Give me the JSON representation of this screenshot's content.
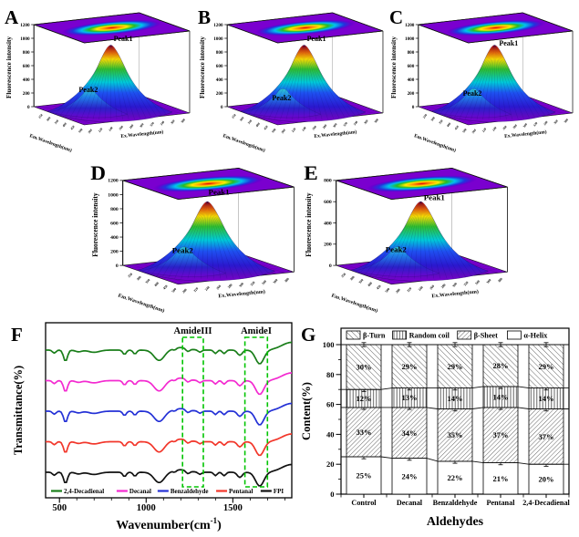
{
  "figure": {
    "axes3d": {
      "em_ticks": [
        "250",
        "300",
        "350",
        "400",
        "450",
        "500"
      ],
      "ex_ticks": [
        "200",
        "220",
        "240",
        "260",
        "280",
        "300",
        "320",
        "340",
        "360",
        "380"
      ]
    },
    "colors": {
      "surface_base_purple": "#7a00cf",
      "annotation_green": "#00c400",
      "jet_scale": [
        "#d10000",
        "#ff6f00",
        "#ffe400",
        "#2fc02f",
        "#00c9d8",
        "#1e50f0",
        "#2a18cf",
        "#7a00cf"
      ]
    }
  },
  "chart_data": [
    {
      "panel": "A",
      "type": "surface_3d",
      "zlabel": "Fluorescence intensity",
      "zmax": 1200,
      "zticks": [
        "1200",
        "1000",
        "800",
        "600",
        "400",
        "200",
        "0"
      ],
      "annotations": [
        "Peak1",
        "Peak2"
      ],
      "xlabel": "Em.Wavelength(nm)",
      "ylabel": "Ex.Wavelength(nm)"
    },
    {
      "panel": "B",
      "type": "surface_3d",
      "zlabel": "Fluorescence intensity",
      "zmax": 1200,
      "zticks": [
        "1200",
        "1000",
        "800",
        "600",
        "400",
        "200",
        "0"
      ],
      "annotations": [
        "Peak1",
        "Peak2"
      ],
      "xlabel": "Em.Wavelength(nm)",
      "ylabel": "Ex.Wavelength(nm)"
    },
    {
      "panel": "C",
      "type": "surface_3d",
      "zlabel": "Fluorescence intensity",
      "zmax": 1200,
      "zticks": [
        "1200",
        "1000",
        "800",
        "600",
        "400",
        "200",
        "0"
      ],
      "annotations": [
        "Peak1",
        "Peak2"
      ],
      "xlabel": "Em.Wavelength(nm)",
      "ylabel": "Ex.Wavelength(nm)"
    },
    {
      "panel": "D",
      "type": "surface_3d",
      "zlabel": "Fluorescence intensity",
      "zmax": 1200,
      "zticks": [
        "1200",
        "1000",
        "800",
        "600",
        "400",
        "200",
        "0"
      ],
      "annotations": [
        "Peak1",
        "Peak2"
      ],
      "xlabel": "Em.Wavelength(nm)",
      "ylabel": "Ex.Wavelength(nm)"
    },
    {
      "panel": "E",
      "type": "surface_3d",
      "zlabel": "Fluorescence intensity",
      "zmax": 800,
      "zticks": [
        "800",
        "600",
        "400",
        "200",
        "0"
      ],
      "annotations": [
        "Peak1",
        "Peak2"
      ],
      "xlabel": "Em.Wavelength(nm)",
      "ylabel": "Ex.Wavelength(nm)"
    },
    {
      "panel": "F",
      "type": "line",
      "ylabel": "Transmittance(%)",
      "xlabel_display": {
        "main": "Wavenumber(cm",
        "sup": "-1",
        "close": ")"
      },
      "xticks": [
        "500",
        "1000",
        "1500"
      ],
      "x_range": [
        420,
        1840
      ],
      "series": [
        {
          "name": "2,4-Decadienal",
          "color": "#1a7e1a"
        },
        {
          "name": "Decanal",
          "color": "#f32ad0"
        },
        {
          "name": "Benzaldehyde",
          "color": "#2431d6"
        },
        {
          "name": "Pentanal",
          "color": "#f2362a"
        },
        {
          "name": "FPI",
          "color": "#111111"
        }
      ],
      "annotations": [
        {
          "label": "AmideIII",
          "x_range": [
            1210,
            1330
          ]
        },
        {
          "label": "AmideI",
          "x_range": [
            1570,
            1700
          ]
        }
      ],
      "absorption_features_cm1": [
        {
          "c": 470,
          "w": 14,
          "d": 3.5
        },
        {
          "c": 535,
          "w": 16,
          "d": 13
        },
        {
          "c": 610,
          "w": 25,
          "d": 2
        },
        {
          "c": 700,
          "w": 45,
          "d": 2.5
        },
        {
          "c": 875,
          "w": 14,
          "d": 5
        },
        {
          "c": 935,
          "w": 14,
          "d": 4.5
        },
        {
          "c": 1075,
          "w": 42,
          "d": 12
        },
        {
          "c": 1165,
          "w": 12,
          "d": 2
        },
        {
          "c": 1240,
          "w": 16,
          "d": 3.5
        },
        {
          "c": 1310,
          "w": 14,
          "d": 2.5
        },
        {
          "c": 1400,
          "w": 13,
          "d": 4
        },
        {
          "c": 1450,
          "w": 14,
          "d": 4
        },
        {
          "c": 1540,
          "w": 20,
          "d": 6
        },
        {
          "c": 1655,
          "w": 34,
          "d": 16
        },
        {
          "c": 1200,
          "w": 60,
          "d": -3
        },
        {
          "c": 1840,
          "w": 80,
          "d": -9
        }
      ]
    },
    {
      "panel": "G",
      "type": "bar",
      "stacked": true,
      "categories": [
        "Control",
        "Decanal",
        "Benzaldehyde",
        "Pentanal",
        "2,4-Decadienal"
      ],
      "series": [
        {
          "name": "α-Helix",
          "pattern": "plain",
          "values": [
            25,
            24,
            22,
            21,
            20
          ]
        },
        {
          "name": "β-Sheet",
          "pattern": "slash",
          "values": [
            33,
            34,
            35,
            37,
            37
          ]
        },
        {
          "name": "Random coil",
          "pattern": "vertical",
          "values": [
            12,
            13,
            14,
            14,
            14
          ]
        },
        {
          "name": "β-Turn",
          "pattern": "backslash",
          "values": [
            30,
            29,
            29,
            28,
            29
          ]
        }
      ],
      "legend": [
        "β-Turn",
        "Random coil",
        "β-Sheet",
        "α-Helix"
      ],
      "value_suffix": "%",
      "xlabel": "Aldehydes",
      "ylabel": "Content(%)",
      "ylim": [
        0,
        100
      ],
      "yticks": [
        "0",
        "20",
        "40",
        "60",
        "80",
        "100"
      ]
    }
  ]
}
